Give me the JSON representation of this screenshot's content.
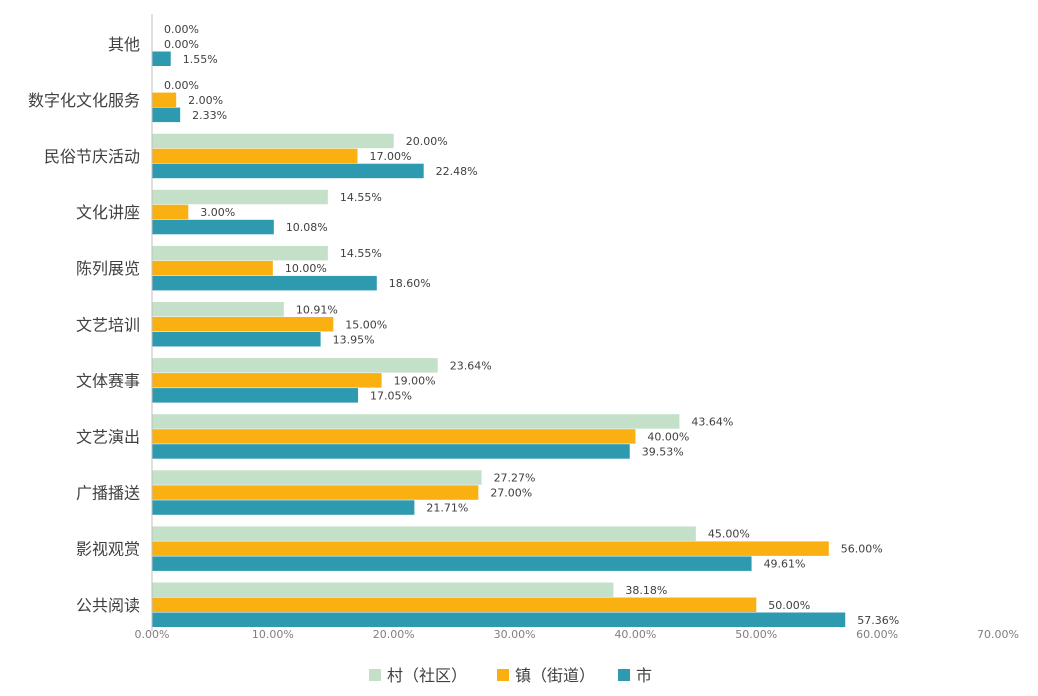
{
  "chart_data": {
    "type": "bar",
    "orientation": "horizontal",
    "categories": [
      "其他",
      "数字化文化服务",
      "民俗节庆活动",
      "文化讲座",
      "陈列展览",
      "文艺培训",
      "文体赛事",
      "文艺演出",
      "广播播送",
      "影视观赏",
      "公共阅读"
    ],
    "series": [
      {
        "name": "村（社区）",
        "color": "#c5e0c9",
        "values": [
          0.0,
          0.0,
          20.0,
          14.55,
          14.55,
          10.91,
          23.64,
          43.64,
          27.27,
          45.0,
          38.18
        ],
        "labels": [
          "0.00%",
          "0.00%",
          "20.00%",
          "14.55%",
          "14.55%",
          "10.91%",
          "23.64%",
          "43.64%",
          "27.27%",
          "45.00%",
          "38.18%"
        ]
      },
      {
        "name": "镇（街道）",
        "color": "#fbb012",
        "values": [
          0.0,
          2.0,
          17.0,
          3.0,
          10.0,
          15.0,
          19.0,
          40.0,
          27.0,
          56.0,
          50.0
        ],
        "labels": [
          "0.00%",
          "2.00%",
          "17.00%",
          "3.00%",
          "10.00%",
          "15.00%",
          "19.00%",
          "40.00%",
          "27.00%",
          "56.00%",
          "50.00%"
        ]
      },
      {
        "name": "市",
        "color": "#2e9ab0",
        "values": [
          1.55,
          2.33,
          22.48,
          10.08,
          18.6,
          13.95,
          17.05,
          39.53,
          21.71,
          49.61,
          57.36
        ],
        "labels": [
          "1.55%",
          "2.33%",
          "22.48%",
          "10.08%",
          "18.60%",
          "13.95%",
          "17.05%",
          "39.53%",
          "21.71%",
          "49.61%",
          "57.36%"
        ]
      }
    ],
    "xlim": [
      0,
      70
    ],
    "xticks": [
      "0.00%",
      "10.00%",
      "20.00%",
      "30.00%",
      "40.00%",
      "50.00%",
      "60.00%",
      "70.00%"
    ],
    "grid": false,
    "legend_position": "bottom"
  }
}
